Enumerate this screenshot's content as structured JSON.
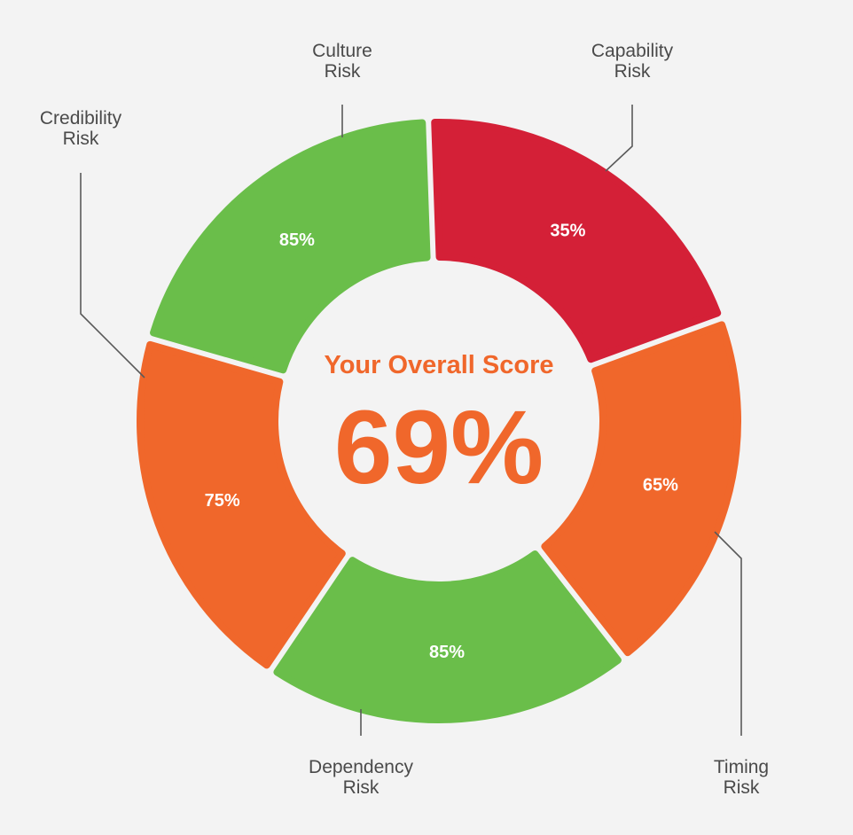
{
  "chart_data": {
    "type": "pie",
    "center_title": "Your Overall Score",
    "center_value": "69%",
    "segments": [
      {
        "category": [
          "Culture",
          "Risk"
        ],
        "value": 35,
        "value_label": "35%",
        "color": "#d42037"
      },
      {
        "category": [
          "Capability",
          "Risk"
        ],
        "value": 65,
        "value_label": "65%",
        "color": "#f0672b"
      },
      {
        "category": [
          "Timing",
          "Risk"
        ],
        "value": 85,
        "value_label": "85%",
        "color": "#6abe4a"
      },
      {
        "category": [
          "Dependency",
          "Risk"
        ],
        "value": 75,
        "value_label": "75%",
        "color": "#f0672b"
      },
      {
        "category": [
          "Credibility",
          "Risk"
        ],
        "value": 85,
        "value_label": "85%",
        "color": "#6abe4a"
      }
    ],
    "accent_color": "#f0672b",
    "background_color": "#f3f3f3"
  }
}
